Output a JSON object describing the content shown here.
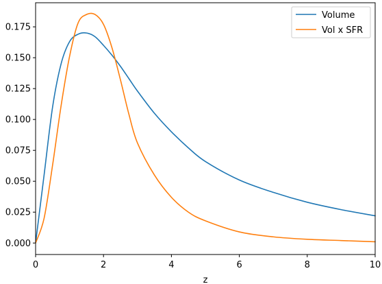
{
  "chart_data": {
    "type": "line",
    "title": "",
    "xlabel": "z",
    "ylabel": "",
    "xlim": [
      0,
      10
    ],
    "ylim": [
      -0.0093,
      0.1945
    ],
    "grid": false,
    "legend_position": "top-right",
    "x_ticks": [
      "0",
      "2",
      "4",
      "6",
      "8",
      "10"
    ],
    "y_ticks": [
      "0.000",
      "0.025",
      "0.050",
      "0.075",
      "0.100",
      "0.125",
      "0.150",
      "0.175"
    ],
    "x": [
      0,
      0.25,
      0.5,
      0.75,
      1,
      1.25,
      1.5,
      1.75,
      2,
      2.25,
      2.5,
      2.75,
      3,
      3.5,
      4,
      4.5,
      5,
      6,
      7,
      8,
      9,
      10
    ],
    "series": [
      {
        "name": "Volume",
        "color": "#1f77b4",
        "values": [
          0,
          0.055,
          0.11,
          0.145,
          0.163,
          0.169,
          0.17,
          0.167,
          0.16,
          0.152,
          0.143,
          0.133,
          0.123,
          0.105,
          0.09,
          0.077,
          0.066,
          0.051,
          0.041,
          0.033,
          0.027,
          0.022
        ]
      },
      {
        "name": "Vol x SFR",
        "color": "#ff7f0e",
        "values": [
          0,
          0.02,
          0.063,
          0.111,
          0.151,
          0.178,
          0.185,
          0.185,
          0.177,
          0.158,
          0.132,
          0.104,
          0.081,
          0.055,
          0.037,
          0.025,
          0.018,
          0.009,
          0.005,
          0.003,
          0.002,
          0.001
        ]
      }
    ]
  }
}
